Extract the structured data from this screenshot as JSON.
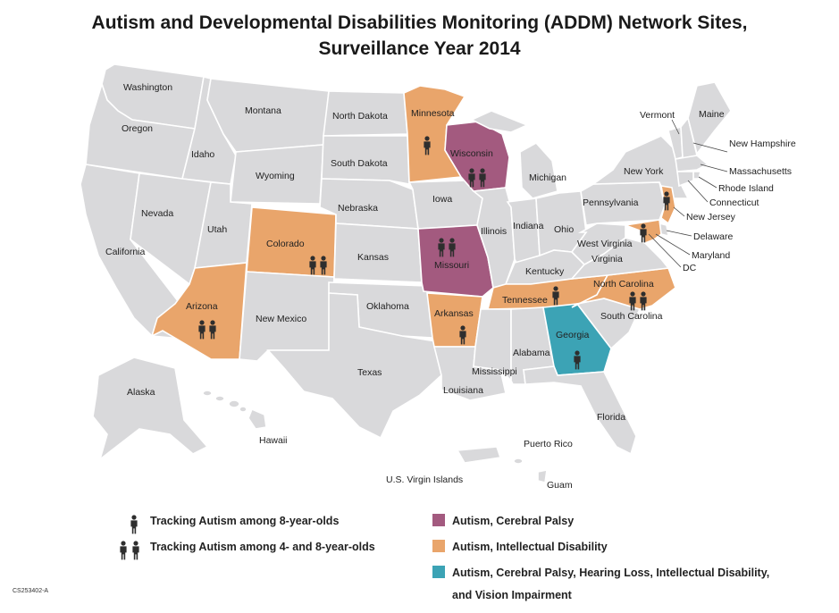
{
  "title": {
    "line1": "Autism and Developmental Disabilities Monitoring (ADDM) Network Sites,",
    "line2": "Surveillance Year 2014"
  },
  "colors": {
    "autism_cp": "#a35a7f",
    "autism_id": "#e9a56b",
    "autism_all": "#3ca3b5",
    "state_default": "#d9d9db",
    "icon": "#2e2e2e"
  },
  "states": {
    "washington": "Washington",
    "oregon": "Oregon",
    "california": "California",
    "idaho": "Idaho",
    "nevada": "Nevada",
    "montana": "Montana",
    "wyoming": "Wyoming",
    "utah": "Utah",
    "arizona": "Arizona",
    "colorado": "Colorado",
    "new_mexico": "New Mexico",
    "north_dakota": "North Dakota",
    "south_dakota": "South Dakota",
    "nebraska": "Nebraska",
    "kansas": "Kansas",
    "oklahoma": "Oklahoma",
    "texas": "Texas",
    "minnesota": "Minnesota",
    "iowa": "Iowa",
    "missouri": "Missouri",
    "arkansas": "Arkansas",
    "louisiana": "Louisiana",
    "wisconsin": "Wisconsin",
    "illinois": "Illinois",
    "michigan": "Michigan",
    "indiana": "Indiana",
    "ohio": "Ohio",
    "kentucky": "Kentucky",
    "tennessee": "Tennessee",
    "mississippi": "Mississippi",
    "alabama": "Alabama",
    "georgia": "Georgia",
    "florida": "Florida",
    "south_carolina": "South Carolina",
    "north_carolina": "North Carolina",
    "virginia": "Virginia",
    "west_virginia": "West Virginia",
    "pennsylvania": "Pennsylvania",
    "new_york": "New York",
    "vermont": "Vermont",
    "maine": "Maine",
    "new_hampshire": "New Hampshire",
    "massachusetts": "Massachusetts",
    "rhode_island": "Rhode Island",
    "connecticut": "Connecticut",
    "new_jersey": "New Jersey",
    "delaware": "Delaware",
    "maryland": "Maryland",
    "dc": "DC",
    "alaska": "Alaska",
    "hawaii": "Hawaii",
    "puerto_rico": "Puerto Rico",
    "virgin_islands": "U.S. Virgin Islands",
    "guam": "Guam"
  },
  "legend": {
    "track_8": "Tracking Autism among 8-year-olds",
    "track_4_8": "Tracking Autism among 4- and 8-year-olds",
    "cat_cp": "Autism, Cerebral Palsy",
    "cat_id": "Autism, Intellectual Disability",
    "cat_all_line1": "Autism, Cerebral Palsy, Hearing Loss, Intellectual Disability,",
    "cat_all_line2": "and Vision Impairment"
  },
  "figure_code": "CS253402-A"
}
